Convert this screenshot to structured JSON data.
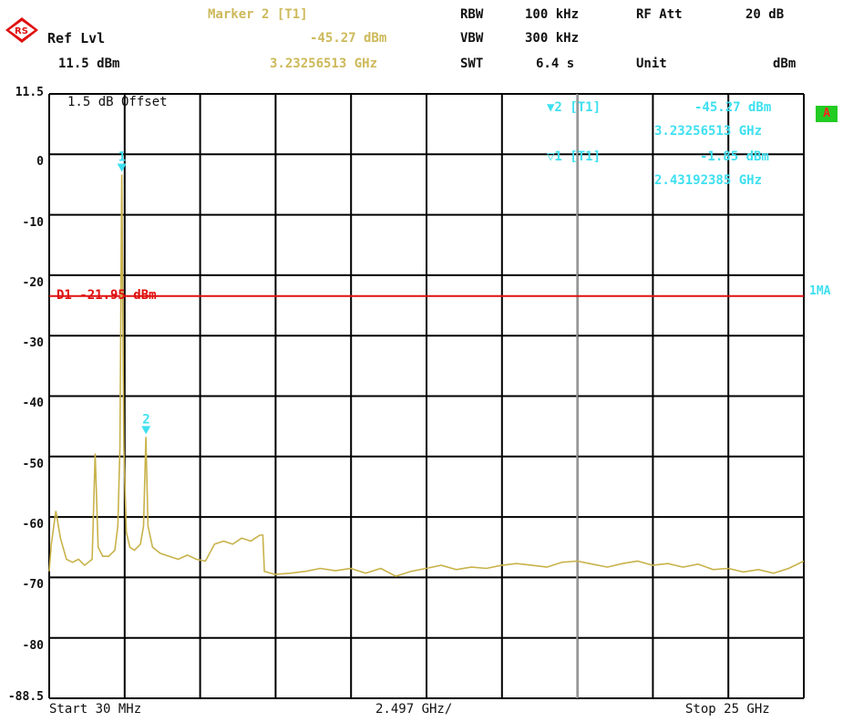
{
  "header": {
    "ref_lvl_label": "Ref Lvl",
    "ref_lvl_value": "11.5 dBm",
    "marker_title": "Marker 2 [T1]",
    "marker_level": "-45.27 dBm",
    "marker_freq": "3.23256513 GHz",
    "rbw_label": "RBW",
    "rbw_value": "100 kHz",
    "vbw_label": "VBW",
    "vbw_value": "300 kHz",
    "swt_label": "SWT",
    "swt_value": "6.4 s",
    "rfatt_label": "RF Att",
    "rfatt_value": "20 dB",
    "unit_label": "Unit",
    "unit_value": "dBm"
  },
  "overlay": {
    "offset_text": "1.5 dB Offset",
    "m2_tag": "▼2 [T1]",
    "m2_level": "-45.27 dBm",
    "m2_freq": "3.23256513 GHz",
    "m1_tag": "▽1 [T1]",
    "m1_level": "-1.85 dBm",
    "m1_freq": "2.43192385 GHz",
    "display_line_label": "D1 -21.95 dBm",
    "trace_badge": "A",
    "detector_label": "1MA"
  },
  "footer": {
    "start": "Start 30 MHz",
    "center": "2.497 GHz/",
    "stop": "Stop 25 GHz"
  },
  "colors": {
    "trace": "#c8b24a",
    "display_line": "#e01010",
    "marker": "#3ee0f0",
    "grid": "#000000",
    "badge": "#22cc22"
  },
  "chart_data": {
    "type": "line",
    "x_unit": "GHz",
    "y_unit": "dBm",
    "xlim": [
      0.03,
      25.0
    ],
    "ylim": [
      -88.5,
      11.5
    ],
    "y_ticks": [
      {
        "value": 11.5,
        "label": "11.5"
      },
      {
        "value": 0,
        "label": "0"
      },
      {
        "value": -10,
        "label": "-10"
      },
      {
        "value": -20,
        "label": "-20"
      },
      {
        "value": -30,
        "label": "-30"
      },
      {
        "value": -40,
        "label": "-40"
      },
      {
        "value": -50,
        "label": "-50"
      },
      {
        "value": -60,
        "label": "-60"
      },
      {
        "value": -70,
        "label": "-70"
      },
      {
        "value": -80,
        "label": "-80"
      },
      {
        "value": -88.5,
        "label": "-88.5"
      }
    ],
    "grid": true,
    "display_line_dbm": -21.95,
    "center_line_ghz": 17.5,
    "markers": [
      {
        "label": "1",
        "x": 2.43192385,
        "y": -1.85
      },
      {
        "label": "2",
        "x": 3.23256513,
        "y": -45.27
      }
    ],
    "series": [
      {
        "values": [
          [
            0.03,
            -67.5
          ],
          [
            0.1,
            -63
          ],
          [
            0.25,
            -57.5
          ],
          [
            0.4,
            -62
          ],
          [
            0.6,
            -65.5
          ],
          [
            0.8,
            -66
          ],
          [
            1.0,
            -65.5
          ],
          [
            1.2,
            -66.5
          ],
          [
            1.45,
            -65.5
          ],
          [
            1.55,
            -48
          ],
          [
            1.65,
            -63.5
          ],
          [
            1.8,
            -65
          ],
          [
            2.0,
            -65
          ],
          [
            2.2,
            -64
          ],
          [
            2.3,
            -60
          ],
          [
            2.37,
            -47
          ],
          [
            2.43,
            -1.85
          ],
          [
            2.5,
            -47
          ],
          [
            2.58,
            -61
          ],
          [
            2.7,
            -63.5
          ],
          [
            2.85,
            -64
          ],
          [
            3.05,
            -63
          ],
          [
            3.15,
            -60
          ],
          [
            3.23,
            -45.27
          ],
          [
            3.3,
            -60
          ],
          [
            3.45,
            -63.5
          ],
          [
            3.7,
            -64.5
          ],
          [
            4.0,
            -65
          ],
          [
            4.3,
            -65.5
          ],
          [
            4.6,
            -64.8
          ],
          [
            4.9,
            -65.5
          ],
          [
            5.2,
            -65.8
          ],
          [
            5.5,
            -63
          ],
          [
            5.8,
            -62.5
          ],
          [
            6.1,
            -63
          ],
          [
            6.4,
            -62
          ],
          [
            6.7,
            -62.5
          ],
          [
            7.0,
            -61.5
          ],
          [
            7.1,
            -61.5
          ],
          [
            7.15,
            -67.5
          ],
          [
            7.5,
            -68
          ],
          [
            8.0,
            -67.8
          ],
          [
            8.5,
            -67.5
          ],
          [
            9.0,
            -67
          ],
          [
            9.5,
            -67.4
          ],
          [
            10.0,
            -67
          ],
          [
            10.5,
            -67.8
          ],
          [
            11.0,
            -67
          ],
          [
            11.5,
            -68.3
          ],
          [
            12.0,
            -67.5
          ],
          [
            12.5,
            -67
          ],
          [
            13.0,
            -66.5
          ],
          [
            13.5,
            -67.2
          ],
          [
            14.0,
            -66.8
          ],
          [
            14.5,
            -67
          ],
          [
            15.0,
            -66.5
          ],
          [
            15.5,
            -66.2
          ],
          [
            16.0,
            -66.5
          ],
          [
            16.5,
            -66.8
          ],
          [
            17.0,
            -66
          ],
          [
            17.5,
            -65.8
          ],
          [
            18.0,
            -66.3
          ],
          [
            18.5,
            -66.8
          ],
          [
            19.0,
            -66.2
          ],
          [
            19.5,
            -65.8
          ],
          [
            20.0,
            -66.5
          ],
          [
            20.5,
            -66.2
          ],
          [
            21.0,
            -66.8
          ],
          [
            21.5,
            -66.3
          ],
          [
            22.0,
            -67.2
          ],
          [
            22.5,
            -67
          ],
          [
            23.0,
            -67.6
          ],
          [
            23.5,
            -67.2
          ],
          [
            24.0,
            -67.8
          ],
          [
            24.5,
            -67
          ],
          [
            25.0,
            -65.8
          ]
        ]
      }
    ]
  }
}
